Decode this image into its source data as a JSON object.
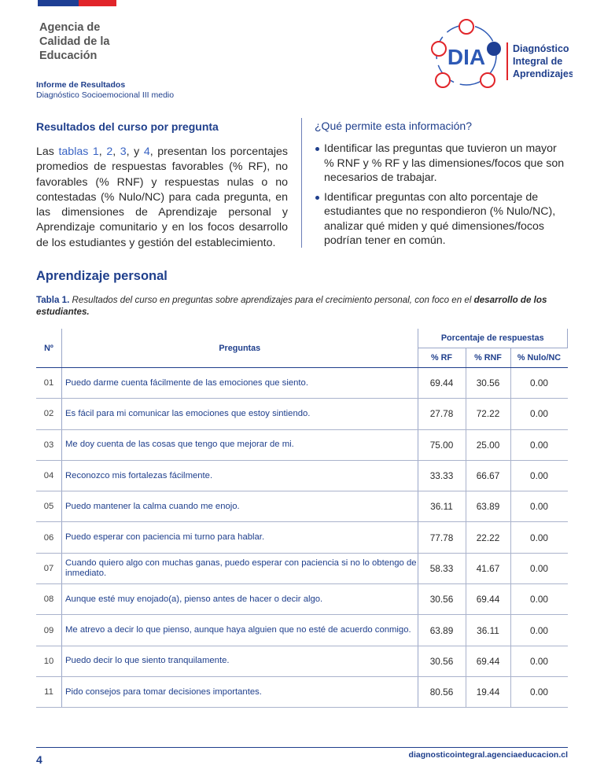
{
  "header": {
    "agency": [
      "Agencia de",
      "Calidad de la",
      "Educación"
    ],
    "report_title": "Informe de Resultados",
    "report_subtitle": "Diagnóstico Socioemocional III medio",
    "logo_text": "DIA",
    "logo_lines": [
      "Diagnóstico",
      "Integral de",
      "Aprendizajes"
    ]
  },
  "intro": {
    "title": "Resultados del curso por pregunta",
    "paragraph": [
      {
        "text": "Las ",
        "link": false
      },
      {
        "text": "tablas 1",
        "link": true
      },
      {
        "text": ", ",
        "link": false
      },
      {
        "text": "2",
        "link": true
      },
      {
        "text": ", ",
        "link": false
      },
      {
        "text": "3",
        "link": true
      },
      {
        "text": ", y ",
        "link": false
      },
      {
        "text": "4",
        "link": true
      },
      {
        "text": ", presentan los porcentajes promedios de respuestas favorables (% RF), no favorables (% RNF) y  respuestas nulas o no contestadas (% Nulo/NC) para cada pregunta, en las dimensiones de Aprendizaje personal y Aprendizaje comunitario y en los focos desarrollo de los estudiantes y gestión del establecimiento.",
        "link": false
      }
    ]
  },
  "info": {
    "title": "¿Qué permite esta información?",
    "bullets": [
      "Identificar las preguntas que tuvieron un mayor % RNF y % RF y las dimensiones/focos que son necesarios de trabajar.",
      "Identificar preguntas con alto porcentaje de estudiantes que no respondieron (% Nulo/NC), analizar qué miden y qué dimensiones/focos podrían tener en común."
    ]
  },
  "section_title": "Aprendizaje personal",
  "caption": {
    "label": "Tabla 1.",
    "text": "Resultados del curso en preguntas sobre aprendizajes para el crecimiento personal, con foco en el ",
    "emphasis": "desarrollo de los estudiantes."
  },
  "table": {
    "headers": {
      "number": "Nº",
      "question": "Preguntas",
      "group": "Porcentaje de respuestas",
      "columns": [
        "% RF",
        "% RNF",
        "% Nulo/NC"
      ]
    },
    "rows": [
      [
        "01",
        "Puedo darme cuenta fácilmente de las emociones que siento.",
        "69.44",
        "30.56",
        "0.00"
      ],
      [
        "02",
        "Es fácil para mi comunicar las emociones que estoy sintiendo.",
        "27.78",
        "72.22",
        "0.00"
      ],
      [
        "03",
        "Me doy cuenta de las cosas que tengo que mejorar de mi.",
        "75.00",
        "25.00",
        "0.00"
      ],
      [
        "04",
        "Reconozco mis fortalezas fácilmente.",
        "33.33",
        "66.67",
        "0.00"
      ],
      [
        "05",
        "Puedo mantener la calma cuando me enojo.",
        "36.11",
        "63.89",
        "0.00"
      ],
      [
        "06",
        "Puedo esperar con paciencia mi turno para hablar.",
        "77.78",
        "22.22",
        "0.00"
      ],
      [
        "07",
        "Cuando quiero algo con muchas ganas, puedo esperar con paciencia si no lo obtengo de inmediato.",
        "58.33",
        "41.67",
        "0.00"
      ],
      [
        "08",
        "Aunque esté muy enojado(a), pienso antes de hacer o decir algo.",
        "30.56",
        "69.44",
        "0.00"
      ],
      [
        "09",
        "Me atrevo a decir lo que pienso, aunque haya alguien que no esté de acuerdo conmigo.",
        "63.89",
        "36.11",
        "0.00"
      ],
      [
        "10",
        "Puedo decir lo que siento tranquilamente.",
        "30.56",
        "69.44",
        "0.00"
      ],
      [
        "11",
        "Pido consejos para tomar decisiones importantes.",
        "80.56",
        "19.44",
        "0.00"
      ]
    ]
  },
  "footer": {
    "page": "4",
    "url": "diagnosticointegral.agenciaeducacion.cl"
  }
}
